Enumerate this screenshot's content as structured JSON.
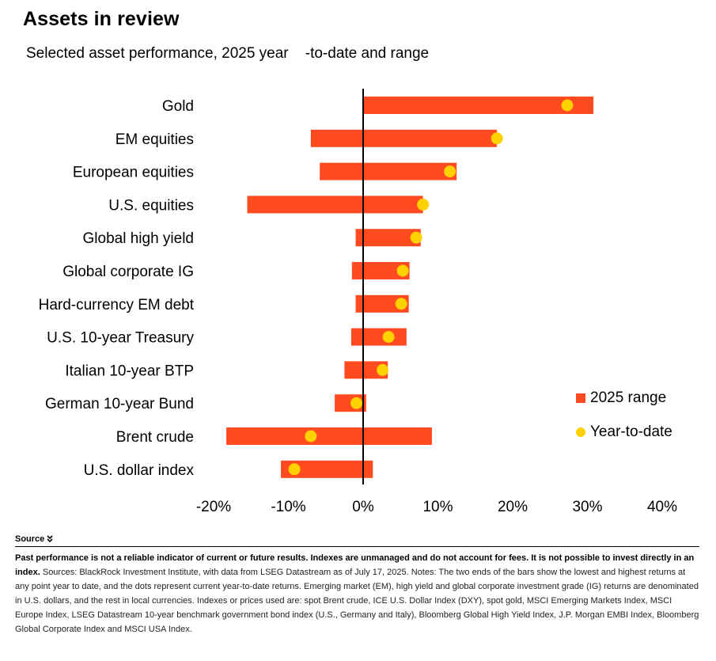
{
  "header": {
    "title": "Assets in review",
    "subtitle": "Selected asset performance, 2025 year    -to-date and range"
  },
  "chart_data": {
    "type": "bar",
    "orientation": "horizontal",
    "categories": [
      "Gold",
      "EM equities",
      "European equities",
      "U.S. equities",
      "Global high yield",
      "Global corporate IG",
      "Hard-currency EM debt",
      "U.S. 10-year Treasury",
      "Italian 10-year BTP",
      "German 10-year Bund",
      "Brent crude",
      "U.S. dollar index"
    ],
    "series": [
      {
        "name": "2025 range",
        "type": "range-bar",
        "color": "#ff4b1f",
        "low": [
          0,
          -7,
          -5.8,
          -15.5,
          -1,
          -1.5,
          -1,
          -1.6,
          -2.5,
          -3.8,
          -18.3,
          -11
        ],
        "high": [
          30.8,
          17.9,
          12.5,
          8,
          7.7,
          6.2,
          6.1,
          5.8,
          3.3,
          0.4,
          9.2,
          1.3
        ]
      },
      {
        "name": "Year-to-date",
        "type": "dot",
        "color": "#ffd100",
        "values": [
          27.3,
          17.9,
          11.6,
          8,
          7.1,
          5.3,
          5.1,
          3.4,
          2.6,
          -0.9,
          -7,
          -9.2
        ]
      }
    ],
    "xlim": [
      -20,
      40
    ],
    "x_ticks": [
      -20,
      -10,
      0,
      10,
      20,
      30,
      40
    ],
    "x_tick_labels": [
      "-20%",
      "-10%",
      "0%",
      "10%",
      "20%",
      "30%",
      "40%"
    ],
    "grid": false,
    "legend_position": "bottom-right"
  },
  "legend": {
    "range_label": "2025 range",
    "ytd_label": "Year-to-date"
  },
  "footer": {
    "source_label": "Source",
    "source_icon": "double-chevron-down-icon",
    "disclaimer": "Past performance is not a reliable indicator of current or future results. Indexes are unmanaged and do not account for fees. It is not possible to invest directly in an index.",
    "notes": " Sources: BlackRock Investment Institute, with data from LSEG Datastream as of July 17, 2025. Notes: The two ends of the bars show the lowest and highest returns at any point year to date, and the dots represent current year-to-date returns. Emerging market (EM), high yield and global corporate investment grade (IG) returns are denominated in U.S. dollars, and the rest in local currencies. Indexes or prices used are: spot Brent crude, ICE U.S. Dollar Index (DXY), spot gold, MSCI Emerging Markets Index, MSCI Europe Index, LSEG Datastream 10-year benchmark government bond index (U.S., Germany and Italy), Bloomberg Global High Yield Index, J.P. Morgan EMBI Index, Bloomberg Global Corporate Index and MSCI USA Index."
  }
}
